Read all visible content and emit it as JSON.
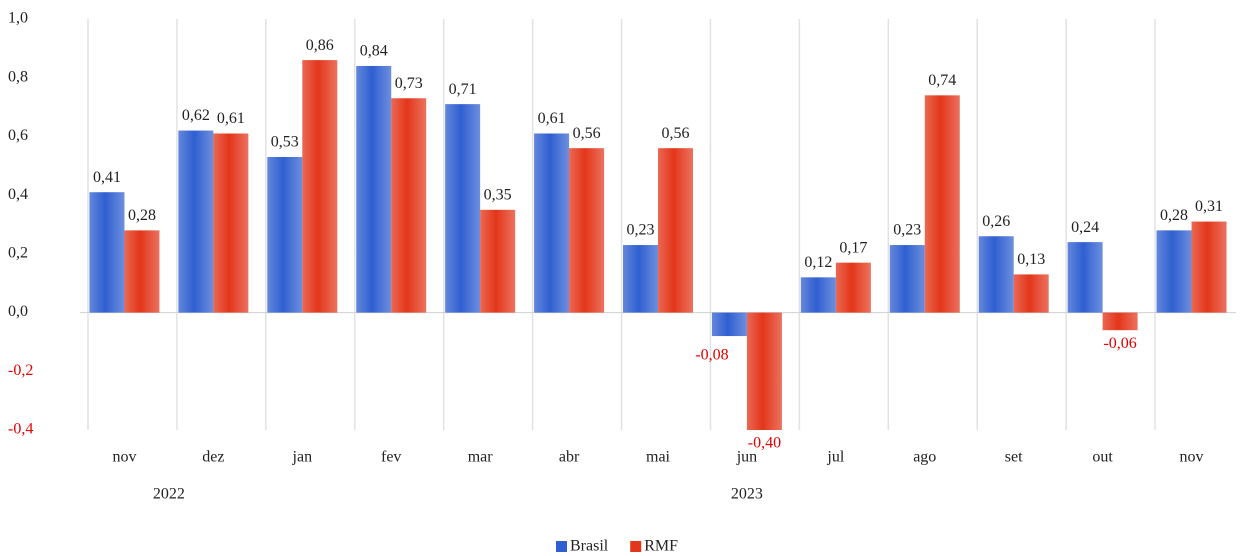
{
  "chart_data": {
    "type": "bar",
    "categories": [
      "nov",
      "dez",
      "jan",
      "fev",
      "mar",
      "abr",
      "mai",
      "jun",
      "jul",
      "ago",
      "set",
      "out",
      "nov"
    ],
    "x_groups": [
      {
        "label": "2022",
        "size": 2
      },
      {
        "label": "2023",
        "size": 11
      }
    ],
    "series": [
      {
        "name": "Brasil",
        "color": "#2f5fd0",
        "values": [
          0.41,
          0.62,
          0.53,
          0.84,
          0.71,
          0.61,
          0.23,
          -0.08,
          0.12,
          0.23,
          0.26,
          0.24,
          0.28
        ],
        "value_labels": [
          "0,41",
          "0,62",
          "0,53",
          "0,84",
          "0,71",
          "0,61",
          "0,23",
          "-0,08",
          "0,12",
          "0,23",
          "0,26",
          "0,24",
          "0,28"
        ]
      },
      {
        "name": "RMF",
        "color": "#e3361a",
        "values": [
          0.28,
          0.61,
          0.86,
          0.73,
          0.35,
          0.56,
          0.56,
          -0.4,
          0.17,
          0.74,
          0.13,
          -0.06,
          0.31
        ],
        "value_labels": [
          "0,28",
          "0,61",
          "0,86",
          "0,73",
          "0,35",
          "0,56",
          "0,56",
          "-0,40",
          "0,17",
          "0,74",
          "0,13",
          "-0,06",
          "0,31"
        ]
      }
    ],
    "negative_color": "#e00000",
    "ylim": [
      -0.4,
      1.0
    ],
    "yticks": [
      {
        "value": -0.4,
        "label": "-0,4"
      },
      {
        "value": -0.2,
        "label": "-0,2"
      },
      {
        "value": 0,
        "label": "0,0"
      },
      {
        "value": 0.2,
        "label": "0,2"
      },
      {
        "value": 0.4,
        "label": "0,4"
      },
      {
        "value": 0.6,
        "label": "0,6"
      },
      {
        "value": 0.8,
        "label": "0,8"
      },
      {
        "value": 1.0,
        "label": "1,0"
      }
    ],
    "grid": true,
    "legend": "bottom"
  }
}
